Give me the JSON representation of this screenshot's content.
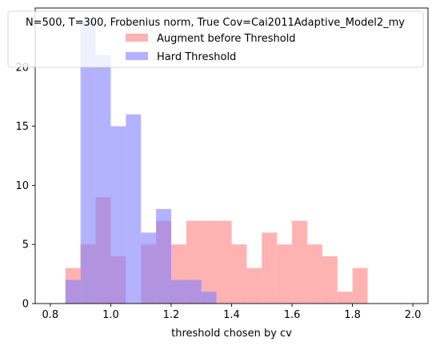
{
  "chart_data": {
    "type": "histogram",
    "xlabel": "threshold chosen by cv",
    "ylabel": "",
    "xlim": [
      0.75,
      2.05
    ],
    "ylim": [
      0,
      25
    ],
    "xticks": [
      "0.8",
      "1.0",
      "1.2",
      "1.4",
      "1.6",
      "1.8",
      "2.0"
    ],
    "yticks": [
      "0",
      "5",
      "10",
      "15",
      "20"
    ],
    "grid": false,
    "legend": {
      "placement": "top-center",
      "title": "N=500, T=300, Frobenius norm, True Cov=Cai2011Adaptive_Model2_my"
    },
    "series": [
      {
        "name": "Augment before Threshold",
        "color": "#ff7f7f",
        "opacity": 0.6,
        "bins": [
          {
            "x0": 0.85,
            "x1": 0.9,
            "count": 3
          },
          {
            "x0": 0.9,
            "x1": 0.95,
            "count": 5
          },
          {
            "x0": 0.95,
            "x1": 1.0,
            "count": 9
          },
          {
            "x0": 1.0,
            "x1": 1.05,
            "count": 4
          },
          {
            "x0": 1.1,
            "x1": 1.15,
            "count": 5
          },
          {
            "x0": 1.15,
            "x1": 1.2,
            "count": 7
          },
          {
            "x0": 1.2,
            "x1": 1.25,
            "count": 5
          },
          {
            "x0": 1.25,
            "x1": 1.3,
            "count": 7
          },
          {
            "x0": 1.3,
            "x1": 1.35,
            "count": 7
          },
          {
            "x0": 1.35,
            "x1": 1.4,
            "count": 7
          },
          {
            "x0": 1.4,
            "x1": 1.45,
            "count": 5
          },
          {
            "x0": 1.45,
            "x1": 1.5,
            "count": 3
          },
          {
            "x0": 1.5,
            "x1": 1.55,
            "count": 6
          },
          {
            "x0": 1.55,
            "x1": 1.6,
            "count": 5
          },
          {
            "x0": 1.6,
            "x1": 1.65,
            "count": 7
          },
          {
            "x0": 1.65,
            "x1": 1.7,
            "count": 5
          },
          {
            "x0": 1.7,
            "x1": 1.75,
            "count": 4
          },
          {
            "x0": 1.75,
            "x1": 1.8,
            "count": 1
          },
          {
            "x0": 1.8,
            "x1": 1.85,
            "count": 3
          }
        ]
      },
      {
        "name": "Hard Threshold",
        "color": "#7f7fff",
        "opacity": 0.6,
        "bins": [
          {
            "x0": 0.85,
            "x1": 0.9,
            "count": 2
          },
          {
            "x0": 0.9,
            "x1": 0.95,
            "count": 24
          },
          {
            "x0": 0.95,
            "x1": 1.0,
            "count": 21
          },
          {
            "x0": 1.0,
            "x1": 1.05,
            "count": 15
          },
          {
            "x0": 1.05,
            "x1": 1.1,
            "count": 16
          },
          {
            "x0": 1.1,
            "x1": 1.15,
            "count": 6
          },
          {
            "x0": 1.15,
            "x1": 1.2,
            "count": 8
          },
          {
            "x0": 1.2,
            "x1": 1.25,
            "count": 2
          },
          {
            "x0": 1.25,
            "x1": 1.3,
            "count": 2
          },
          {
            "x0": 1.3,
            "x1": 1.35,
            "count": 1
          }
        ]
      }
    ]
  }
}
